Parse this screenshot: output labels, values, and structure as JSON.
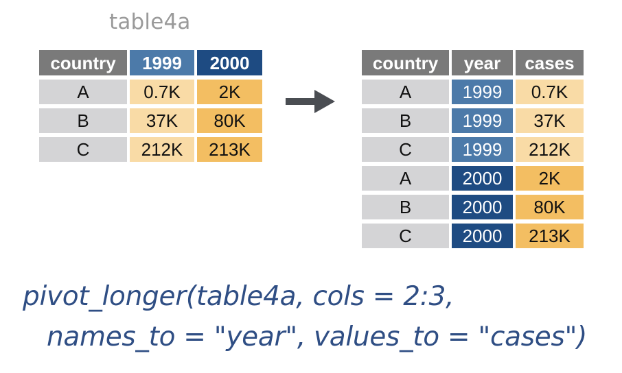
{
  "caption": "table4a",
  "wide_table": {
    "headers": [
      "country",
      "1999",
      "2000"
    ],
    "rows": [
      [
        "A",
        "0.7K",
        "2K"
      ],
      [
        "B",
        "37K",
        "80K"
      ],
      [
        "C",
        "212K",
        "213K"
      ]
    ]
  },
  "long_table": {
    "headers": [
      "country",
      "year",
      "cases"
    ],
    "rows": [
      [
        "A",
        "1999",
        "0.7K"
      ],
      [
        "B",
        "1999",
        "37K"
      ],
      [
        "C",
        "1999",
        "212K"
      ],
      [
        "A",
        "2000",
        "2K"
      ],
      [
        "B",
        "2000",
        "80K"
      ],
      [
        "C",
        "2000",
        "213K"
      ]
    ]
  },
  "code": {
    "line1": "pivot_longer(table4a, cols = 2:3,",
    "line2": "names_to = \"year\", values_to = \"cases\")"
  },
  "arrow_icon": "right-arrow-icon",
  "colors": {
    "header_gray": "#7a7a7a",
    "blue_1999": "#4c7aa9",
    "blue_2000": "#1e4b82",
    "cell_gray": "#d4d4d6",
    "cell_light_orange": "#f9dba6",
    "cell_orange": "#f3be62",
    "code_text": "#2f4e84",
    "caption_text": "#9a9a9a"
  }
}
